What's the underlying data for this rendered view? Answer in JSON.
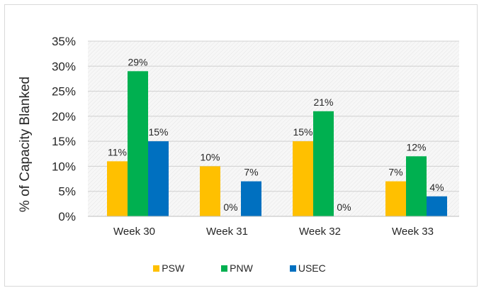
{
  "chart_data": {
    "type": "bar",
    "title": "",
    "xlabel": "",
    "ylabel": "% of Capacity Blanked",
    "ylim": [
      0,
      35
    ],
    "ytick_step": 5,
    "ytick_labels": [
      "0%",
      "5%",
      "10%",
      "15%",
      "20%",
      "25%",
      "30%",
      "35%"
    ],
    "categories": [
      "Week 30",
      "Week 31",
      "Week 32",
      "Week 33"
    ],
    "series": [
      {
        "name": "PSW",
        "color": "#FFC000",
        "values": [
          11,
          10,
          15,
          7
        ],
        "labels": [
          "11%",
          "10%",
          "15%",
          "7%"
        ]
      },
      {
        "name": "PNW",
        "color": "#00B050",
        "values": [
          29,
          0,
          21,
          12
        ],
        "labels": [
          "29%",
          "0%",
          "21%",
          "12%"
        ]
      },
      {
        "name": "USEC",
        "color": "#0070C0",
        "values": [
          15,
          7,
          0,
          4
        ],
        "labels": [
          "15%",
          "7%",
          "0%",
          "4%"
        ]
      }
    ],
    "legend_position": "bottom",
    "grid": true
  }
}
